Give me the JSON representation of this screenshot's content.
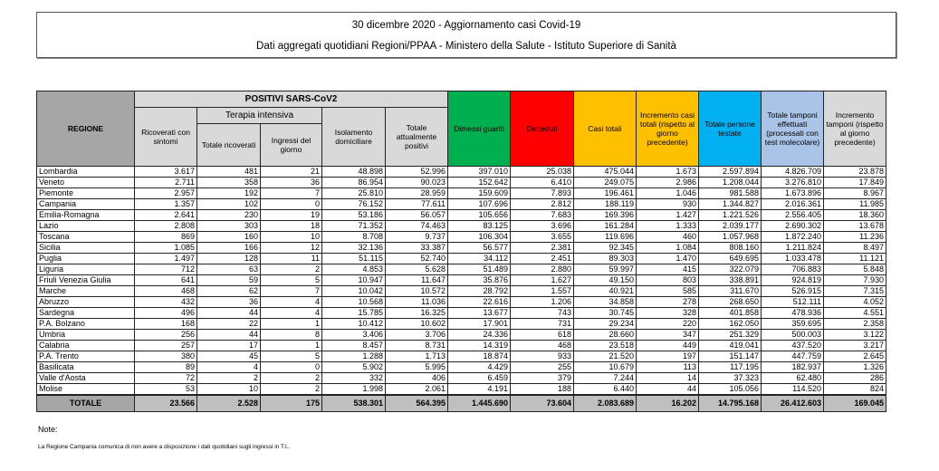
{
  "title": {
    "line1": "30 dicembre 2020 - Aggiornamento casi Covid-19",
    "line2": "Dati aggregati quotidiani Regioni/PPAA - Ministero della Salute - Istituto Superiore di Sanità"
  },
  "headers": {
    "regione": "REGIONE",
    "positivi": "POSITIVI SARS-CoV2",
    "ricoverati": "Ricoverati con sintomi",
    "terapia": "Terapia intensiva",
    "totale_ricoverati": "Totale ricoverati",
    "ingressi": "Ingressi del giorno",
    "isolamento": "Isolamento domiciliare",
    "totale_positivi": "Totale attualmente positivi",
    "dimessi": "Dimessi guariti",
    "deceduti": "Deceduti",
    "casi_totali": "Casi totali",
    "incremento_casi": "Incremento casi totali (rispetto al giorno precedente)",
    "persone_testate": "Totale persone testate",
    "tamponi": "Totale tamponi effettuati (processati con test molecolare)",
    "incremento_tamponi": "Incremento tamponi (rispetto al giorno precedente)"
  },
  "colors": {
    "dimessi": "#00b050",
    "deceduti": "#ff0000",
    "casi": "#ffc000",
    "persone": "#00b0f0",
    "tamponi": "#a9c4e6",
    "incremento_tamponi": "#d9d9d9"
  },
  "rows": [
    [
      "Lombardia",
      "3.617",
      "481",
      "21",
      "48.898",
      "52.996",
      "397.010",
      "25.038",
      "475.044",
      "1.673",
      "2.597.894",
      "4.826.709",
      "23.878"
    ],
    [
      "Veneto",
      "2.711",
      "358",
      "36",
      "86.954",
      "90.023",
      "152.642",
      "6.410",
      "249.075",
      "2.986",
      "1.208.044",
      "3.276.810",
      "17.849"
    ],
    [
      "Piemonte",
      "2.957",
      "192",
      "7",
      "25.810",
      "28.959",
      "159.609",
      "7.893",
      "196.461",
      "1.046",
      "981.588",
      "1.673.896",
      "8.967"
    ],
    [
      "Campania",
      "1.357",
      "102",
      "0",
      "76.152",
      "77.611",
      "107.696",
      "2.812",
      "188.119",
      "930",
      "1.344.827",
      "2.016.361",
      "11.985"
    ],
    [
      "Emilia-Romagna",
      "2.641",
      "230",
      "19",
      "53.186",
      "56.057",
      "105.656",
      "7.683",
      "169.396",
      "1.427",
      "1.221.526",
      "2.556.405",
      "18.360"
    ],
    [
      "Lazio",
      "2.808",
      "303",
      "18",
      "71.352",
      "74.463",
      "83.125",
      "3.696",
      "161.284",
      "1.333",
      "2.039.177",
      "2.690.302",
      "13.678"
    ],
    [
      "Toscana",
      "869",
      "160",
      "10",
      "8.708",
      "9.737",
      "106.304",
      "3.655",
      "119.696",
      "460",
      "1.057.968",
      "1.872.240",
      "11.236"
    ],
    [
      "Sicilia",
      "1.085",
      "166",
      "12",
      "32.136",
      "33.387",
      "56.577",
      "2.381",
      "92.345",
      "1.084",
      "808.160",
      "1.211.824",
      "8.497"
    ],
    [
      "Puglia",
      "1.497",
      "128",
      "11",
      "51.115",
      "52.740",
      "34.112",
      "2.451",
      "89.303",
      "1.470",
      "649.695",
      "1.033.478",
      "11.121"
    ],
    [
      "Liguria",
      "712",
      "63",
      "2",
      "4.853",
      "5.628",
      "51.489",
      "2.880",
      "59.997",
      "415",
      "322.079",
      "706.883",
      "5.848"
    ],
    [
      "Friuli Venezia Giulia",
      "641",
      "59",
      "5",
      "10.947",
      "11.647",
      "35.876",
      "1.627",
      "49.150",
      "803",
      "338.891",
      "924.819",
      "7.930"
    ],
    [
      "Marche",
      "468",
      "62",
      "7",
      "10.042",
      "10.572",
      "28.792",
      "1.557",
      "40.921",
      "585",
      "311.670",
      "526.915",
      "7.315"
    ],
    [
      "Abruzzo",
      "432",
      "36",
      "4",
      "10.568",
      "11.036",
      "22.616",
      "1.206",
      "34.858",
      "278",
      "268.650",
      "512.111",
      "4.052"
    ],
    [
      "Sardegna",
      "496",
      "44",
      "4",
      "15.785",
      "16.325",
      "13.677",
      "743",
      "30.745",
      "328",
      "401.858",
      "478.936",
      "4.551"
    ],
    [
      "P.A. Bolzano",
      "168",
      "22",
      "1",
      "10.412",
      "10.602",
      "17.901",
      "731",
      "29.234",
      "220",
      "162.050",
      "359.695",
      "2.358"
    ],
    [
      "Umbria",
      "256",
      "44",
      "8",
      "3.406",
      "3.706",
      "24.336",
      "618",
      "28.660",
      "347",
      "251.329",
      "500.003",
      "3.122"
    ],
    [
      "Calabria",
      "257",
      "17",
      "1",
      "8.457",
      "8.731",
      "14.319",
      "468",
      "23.518",
      "449",
      "419.041",
      "437.520",
      "3.217"
    ],
    [
      "P.A. Trento",
      "380",
      "45",
      "5",
      "1.288",
      "1.713",
      "18.874",
      "933",
      "21.520",
      "197",
      "151.147",
      "447.759",
      "2.645"
    ],
    [
      "Basilicata",
      "89",
      "4",
      "0",
      "5.902",
      "5.995",
      "4.429",
      "255",
      "10.679",
      "113",
      "117.195",
      "182.937",
      "1.326"
    ],
    [
      "Valle d'Aosta",
      "72",
      "2",
      "2",
      "332",
      "406",
      "6.459",
      "379",
      "7.244",
      "14",
      "37.323",
      "62.480",
      "286"
    ],
    [
      "Molise",
      "53",
      "10",
      "2",
      "1.998",
      "2.061",
      "4.191",
      "188",
      "6.440",
      "44",
      "105.056",
      "114.520",
      "824"
    ]
  ],
  "totale": [
    "TOTALE",
    "23.566",
    "2.528",
    "175",
    "538.301",
    "564.395",
    "1.445.690",
    "73.604",
    "2.083.689",
    "16.202",
    "14.795.168",
    "26.412.603",
    "169.045"
  ],
  "note": {
    "label": "Note:",
    "text": "La Regione Campania comunica di non avere a disposizione i dati quotidiani sugli ingressi in T.I.."
  }
}
